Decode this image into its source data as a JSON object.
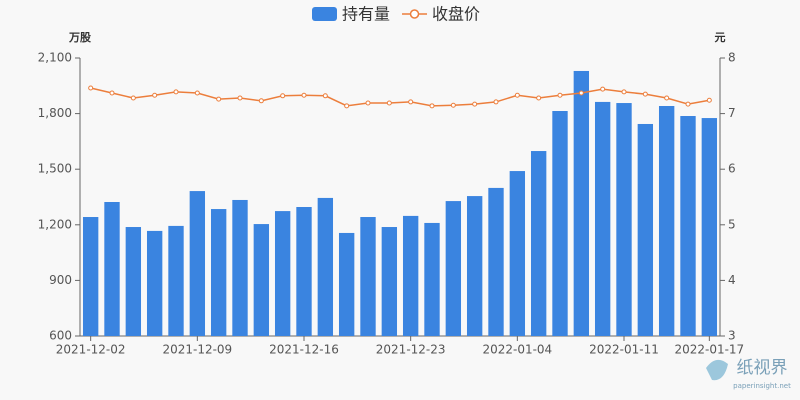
{
  "chart_data": {
    "type": "bar-line",
    "y_label": "万股",
    "y2_label": "元",
    "categories": [
      "2021-12-02",
      null,
      null,
      null,
      null,
      "2021-12-09",
      null,
      null,
      null,
      null,
      "2021-12-16",
      null,
      null,
      null,
      null,
      "2021-12-23",
      null,
      null,
      null,
      null,
      "2022-01-04",
      null,
      null,
      null,
      null,
      "2022-01-11",
      null,
      null,
      null,
      "2022-01-17"
    ],
    "series": [
      {
        "name": "持有量",
        "type": "bar",
        "axis": "y",
        "color": "#3a84e0",
        "values": [
          1242,
          1323,
          1188,
          1167,
          1194,
          1382,
          1285,
          1334,
          1204,
          1274,
          1296,
          1345,
          1156,
          1242,
          1188,
          1248,
          1210,
          1328,
          1355,
          1399,
          1490,
          1598,
          1814,
          2030,
          1863,
          1857,
          1744,
          1841,
          1787,
          1776
        ]
      },
      {
        "name": "收盘价",
        "type": "line",
        "axis": "y2",
        "color": "#ec7e3c",
        "values": [
          7.46,
          7.37,
          7.28,
          7.33,
          7.39,
          7.37,
          7.26,
          7.28,
          7.23,
          7.32,
          7.33,
          7.32,
          7.14,
          7.19,
          7.19,
          7.21,
          7.14,
          7.15,
          7.17,
          7.21,
          7.33,
          7.28,
          7.33,
          7.37,
          7.44,
          7.39,
          7.35,
          7.28,
          7.17,
          7.24
        ]
      }
    ],
    "ylim": [
      600,
      2100
    ],
    "yticks": [
      600,
      900,
      {
        "value": 1200,
        "label": "1,200"
      },
      {
        "value": 1500,
        "label": "1,500"
      },
      {
        "value": 1800,
        "label": "1,800"
      },
      {
        "value": 2100,
        "label": "2,100"
      }
    ],
    "y2lim": [
      3,
      8
    ],
    "y2ticks": [
      3,
      4,
      5,
      6,
      7,
      8
    ],
    "grid": false,
    "legend": "top",
    "watermark": {
      "name": "纸视界",
      "site": "paperinsight.net"
    }
  }
}
